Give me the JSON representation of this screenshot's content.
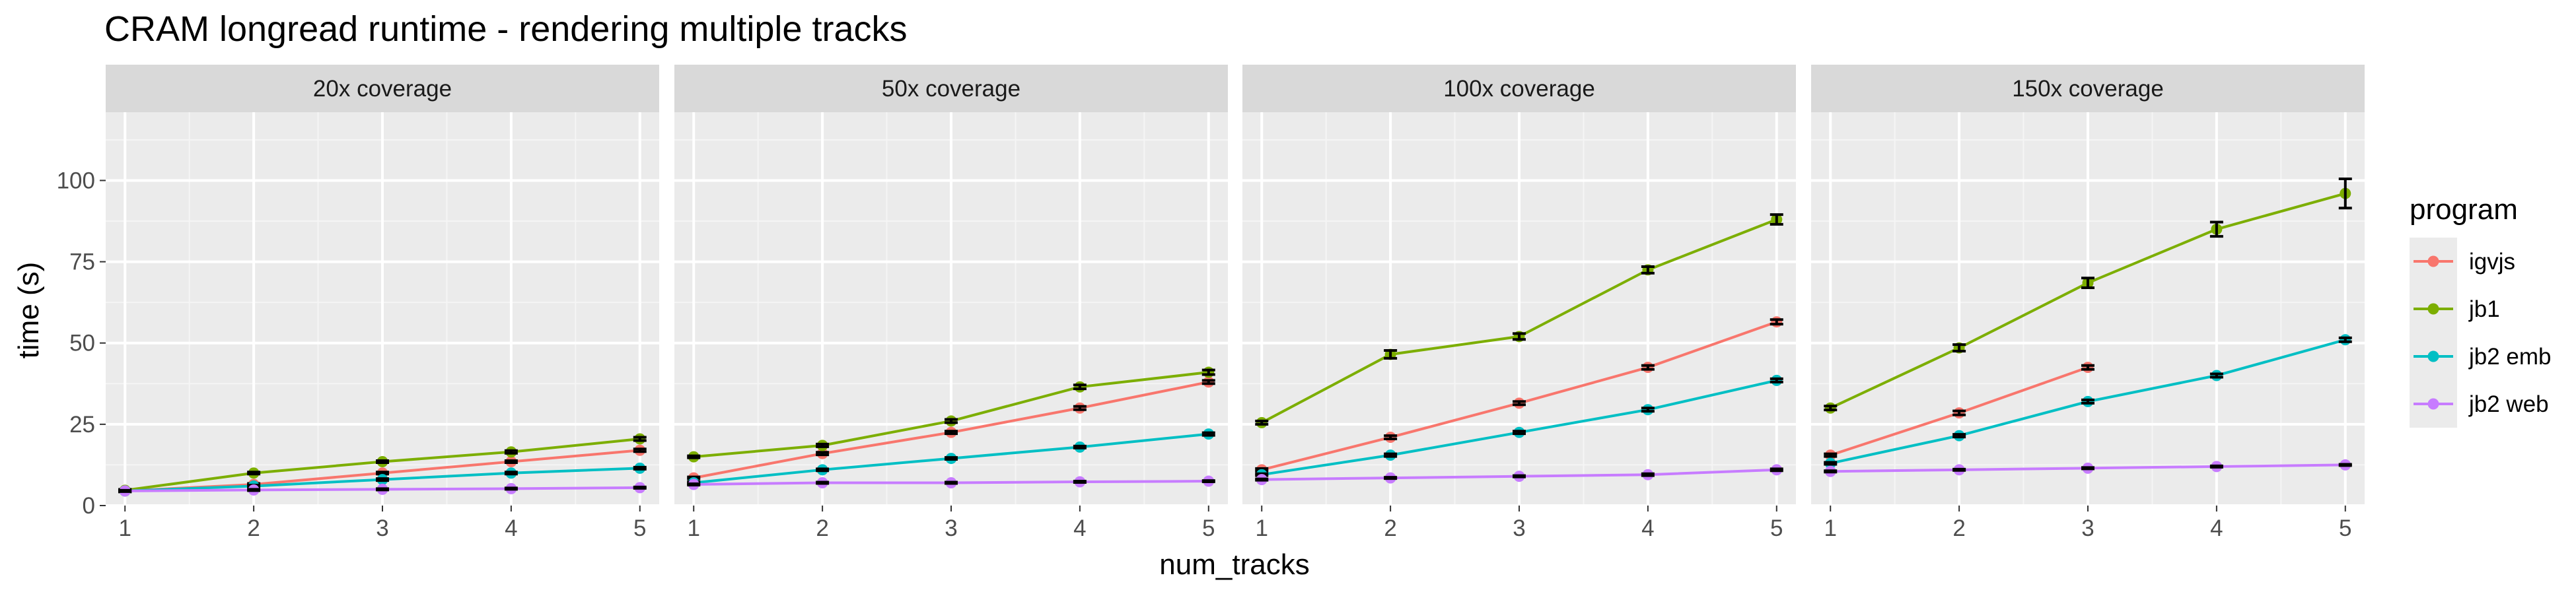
{
  "chart_data": {
    "type": "line",
    "title": "CRAM longread runtime - rendering multiple tracks",
    "xlabel": "num_tracks",
    "ylabel": "time (s)",
    "x": [
      1,
      2,
      3,
      4,
      5
    ],
    "xlim": [
      0.85,
      5.15
    ],
    "ylim": [
      0,
      121
    ],
    "yticks": [
      0,
      25,
      50,
      75,
      100
    ],
    "grid": true,
    "legend": {
      "title": "program",
      "placement": "right"
    },
    "colors": {
      "igvjs": "#F8766D",
      "jb1": "#7CAE00",
      "jb2 emb": "#00BFC4",
      "jb2 web": "#C77CFF"
    },
    "panels": [
      {
        "label": "20x coverage",
        "series": [
          {
            "name": "igvjs",
            "values": [
              4.5,
              6.5,
              10,
              13.5,
              17
            ],
            "errors": [
              0.3,
              0.3,
              0.3,
              0.3,
              0.4
            ]
          },
          {
            "name": "jb1",
            "values": [
              4.7,
              10,
              13.5,
              16.5,
              20.5
            ],
            "errors": [
              0.3,
              0.3,
              0.3,
              0.4,
              0.5
            ]
          },
          {
            "name": "jb2 emb",
            "values": [
              4.5,
              6,
              8,
              10,
              11.5
            ],
            "errors": [
              0.3,
              0.3,
              0.3,
              0.3,
              0.3
            ]
          },
          {
            "name": "jb2 web",
            "values": [
              4.5,
              4.8,
              5,
              5.2,
              5.5
            ],
            "errors": [
              0.2,
              0.2,
              0.2,
              0.2,
              0.2
            ]
          }
        ]
      },
      {
        "label": "50x coverage",
        "series": [
          {
            "name": "igvjs",
            "values": [
              8.5,
              16,
              22.5,
              30,
              38
            ],
            "errors": [
              0.3,
              0.4,
              0.4,
              0.5,
              0.5
            ]
          },
          {
            "name": "jb1",
            "values": [
              15,
              18.5,
              26,
              36.5,
              41
            ],
            "errors": [
              0.3,
              0.4,
              0.5,
              0.6,
              0.7
            ]
          },
          {
            "name": "jb2 emb",
            "values": [
              7,
              11,
              14.5,
              18,
              22
            ],
            "errors": [
              0.3,
              0.3,
              0.3,
              0.3,
              0.4
            ]
          },
          {
            "name": "jb2 web",
            "values": [
              6.5,
              7,
              7,
              7.3,
              7.5
            ],
            "errors": [
              0.2,
              0.2,
              0.2,
              0.2,
              0.2
            ]
          }
        ]
      },
      {
        "label": "100x coverage",
        "series": [
          {
            "name": "igvjs",
            "values": [
              11,
              21,
              31.5,
              42.5,
              56.5
            ],
            "errors": [
              0.4,
              0.5,
              0.5,
              0.6,
              0.7
            ]
          },
          {
            "name": "jb1",
            "values": [
              25.5,
              46.5,
              52,
              72.5,
              88
            ],
            "errors": [
              0.5,
              1.2,
              0.9,
              1.0,
              1.5
            ]
          },
          {
            "name": "jb2 emb",
            "values": [
              9.5,
              15.5,
              22.5,
              29.5,
              38.5
            ],
            "errors": [
              0.3,
              0.4,
              0.4,
              0.5,
              0.5
            ]
          },
          {
            "name": "jb2 web",
            "values": [
              8,
              8.5,
              9,
              9.5,
              11
            ],
            "errors": [
              0.2,
              0.2,
              0.2,
              0.3,
              0.3
            ]
          }
        ]
      },
      {
        "label": "150x coverage",
        "series": [
          {
            "name": "igvjs",
            "values": [
              15.5,
              28.5,
              42.5
            ],
            "errors": [
              0.4,
              0.6,
              0.6
            ]
          },
          {
            "name": "jb1",
            "values": [
              30,
              48.5,
              68.5,
              85,
              96
            ],
            "errors": [
              0.6,
              1.0,
              1.5,
              2.2,
              4.5
            ]
          },
          {
            "name": "jb2 emb",
            "values": [
              13,
              21.5,
              32,
              40,
              51
            ],
            "errors": [
              0.3,
              0.4,
              0.5,
              0.5,
              0.6
            ]
          },
          {
            "name": "jb2 web",
            "values": [
              10.5,
              11,
              11.5,
              12,
              12.5
            ],
            "errors": [
              0.2,
              0.2,
              0.2,
              0.2,
              0.2
            ]
          }
        ]
      }
    ]
  }
}
